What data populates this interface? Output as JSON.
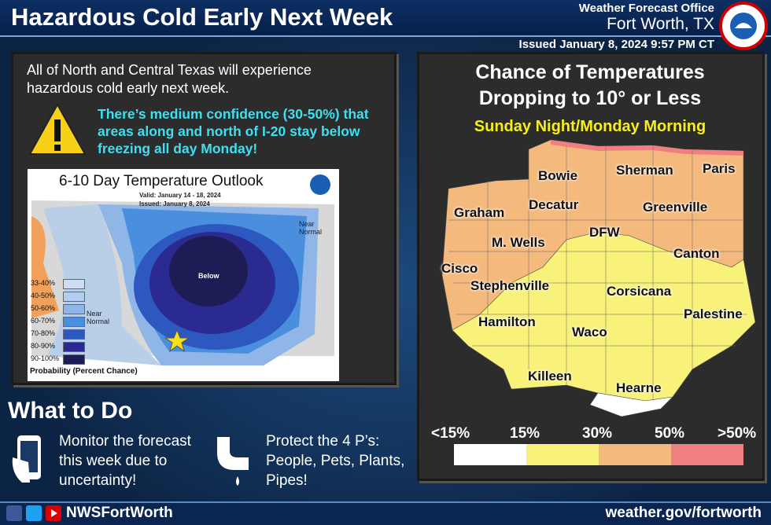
{
  "header": {
    "title": "Hazardous Cold Early Next Week",
    "office": "Weather Forecast Office",
    "location": "Fort Worth, TX",
    "issued": "Issued January 8, 2024 9:57 PM CT"
  },
  "left_panel": {
    "intro": "All of North and Central Texas will experience hazardous cold early next week.",
    "alert": "There’s medium confidence (30-50%) that areas along and north of I-20 stay below freezing all day Monday!"
  },
  "outlook_map": {
    "title": "6-10 Day Temperature Outlook",
    "valid": "Valid: January 14 - 18, 2024",
    "issued": "Issued: January 8, 2024",
    "below": "Below",
    "near_normal_east": "Near Normal",
    "near_normal_west": "Near Normal",
    "legend": [
      "33-40%",
      "40-50%",
      "50-60%",
      "60-70%",
      "70-80%",
      "80-90%",
      "90-100%"
    ],
    "legend_title": "Probability (Percent Chance)"
  },
  "right_panel": {
    "title_lines": [
      "Chance of Temperatures",
      "Dropping to 10° or Less"
    ],
    "subtitle": "Sunday Night/Monday Morning",
    "cities": [
      "Bowie",
      "Sherman",
      "Paris",
      "Graham",
      "Decatur",
      "Greenville",
      "DFW",
      "M. Wells",
      "Canton",
      "Cisco",
      "Stephenville",
      "Corsicana",
      "Palestine",
      "Hamilton",
      "Waco",
      "Killeen",
      "Hearne"
    ],
    "scale": [
      "<15%",
      "15%",
      "30%",
      "50%",
      ">50%"
    ]
  },
  "actions": {
    "title": "What to Do",
    "items": [
      "Monitor the forecast this week due to uncertainty!",
      "Protect the 4 P’s: People, Pets, Plants, Pipes!"
    ]
  },
  "footer": {
    "handle": "NWSFortWorth",
    "url": "weather.gov/fortworth"
  }
}
